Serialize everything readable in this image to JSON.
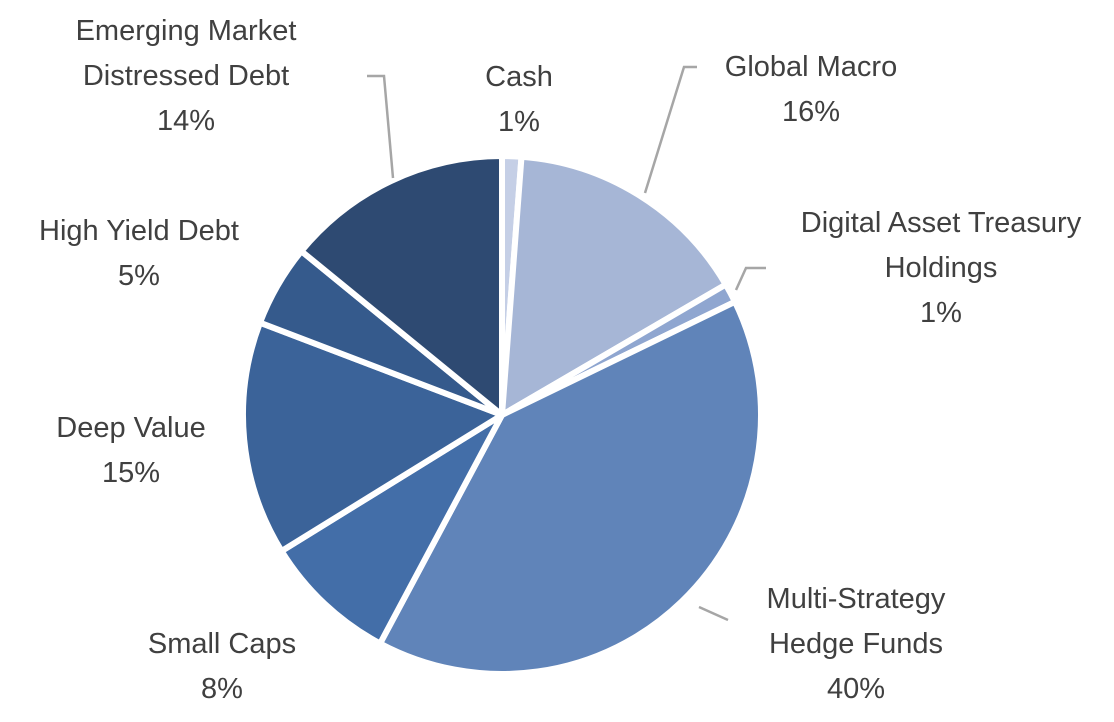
{
  "chart_data": {
    "type": "pie",
    "title": "",
    "start_angle_deg": 0,
    "direction": "clockwise",
    "slices": [
      {
        "label": [
          "Cash"
        ],
        "pct_label": "1%",
        "value": 1.2,
        "color": "#c5cfe6"
      },
      {
        "label": [
          "Global Macro"
        ],
        "pct_label": "16%",
        "value": 15.4,
        "color": "#a6b6d6"
      },
      {
        "label": [
          "Digital Asset Treasury",
          "Holdings"
        ],
        "pct_label": "1%",
        "value": 1.2,
        "color": "#8fa6d0"
      },
      {
        "label": [
          "Multi-Strategy",
          "Hedge Funds"
        ],
        "pct_label": "40%",
        "value": 40.0,
        "color": "#6084b9"
      },
      {
        "label": [
          "Small Caps"
        ],
        "pct_label": "8%",
        "value": 8.4,
        "color": "#436ea8"
      },
      {
        "label": [
          "Deep Value"
        ],
        "pct_label": "15%",
        "value": 14.6,
        "color": "#3b6399"
      },
      {
        "label": [
          "High Yield Debt"
        ],
        "pct_label": "5%",
        "value": 5.1,
        "color": "#355a8c"
      },
      {
        "label": [
          "Emerging Market",
          "Distressed Debt"
        ],
        "pct_label": "14%",
        "value": 14.1,
        "color": "#2e4a72"
      }
    ]
  }
}
